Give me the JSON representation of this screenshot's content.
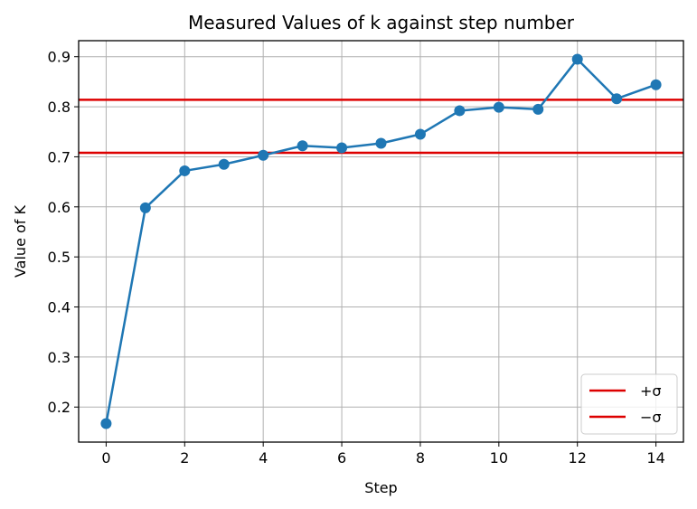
{
  "chart_data": {
    "type": "line",
    "title": "Measured Values of k against step number",
    "xlabel": "Step",
    "ylabel": "Value of K",
    "xlim": [
      -0.7,
      14.7
    ],
    "ylim": [
      0.13,
      0.932
    ],
    "xticks": [
      0,
      2,
      4,
      6,
      8,
      10,
      12,
      14
    ],
    "xtick_labels": [
      "0",
      "2",
      "4",
      "6",
      "8",
      "10",
      "12",
      "14"
    ],
    "yticks": [
      0.2,
      0.3,
      0.4,
      0.5,
      0.6,
      0.7,
      0.8,
      0.9
    ],
    "ytick_labels": [
      "0.2",
      "0.3",
      "0.4",
      "0.5",
      "0.6",
      "0.7",
      "0.8",
      "0.9"
    ],
    "grid": true,
    "series": [
      {
        "x": [
          0,
          1,
          2,
          3,
          4,
          5,
          6,
          7,
          8,
          9,
          10,
          11,
          12,
          13,
          14
        ],
        "y": [
          0.167,
          0.598,
          0.672,
          0.685,
          0.703,
          0.722,
          0.718,
          0.727,
          0.745,
          0.792,
          0.799,
          0.795,
          0.895,
          0.816,
          0.844
        ],
        "color": "#1f77b4",
        "markers": true
      }
    ],
    "hlines": [
      {
        "name": "+σ",
        "y": 0.814,
        "color": "#dd0000"
      },
      {
        "name": "−σ",
        "y": 0.708,
        "color": "#dd0000"
      }
    ],
    "legend": {
      "position": "lower-right",
      "entries": [
        "+σ",
        "−σ"
      ]
    }
  }
}
